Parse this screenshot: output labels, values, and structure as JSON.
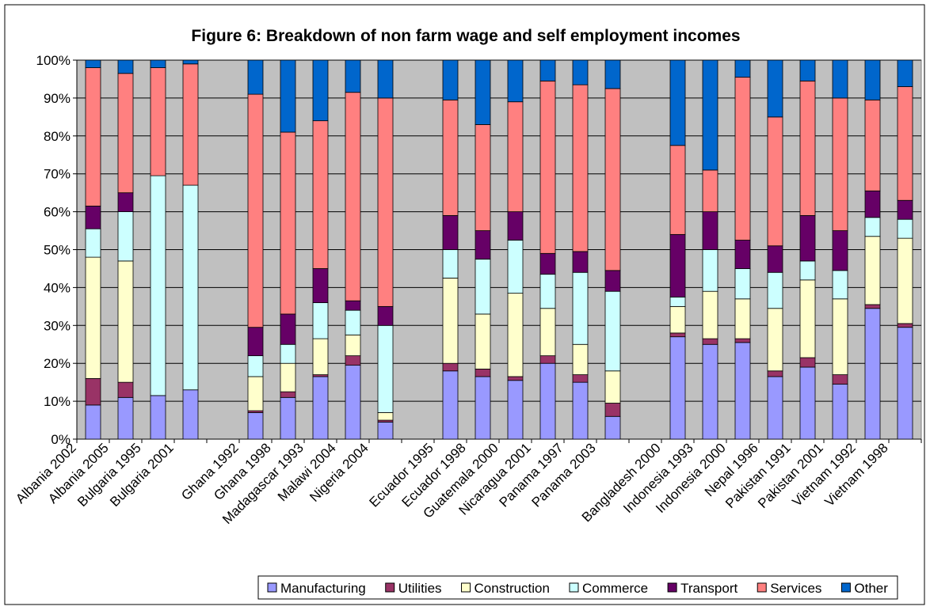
{
  "chart_data": {
    "type": "stacked_bar",
    "title": "Figure 6: Breakdown of non farm wage and self employment incomes",
    "categories": [
      "Albania 2002",
      "Albania 2005",
      "Bulgaria 1995",
      "Bulgaria 2001",
      null,
      "Ghana 1992",
      "Ghana 1998",
      "Madagascar 1993",
      "Malawi 2004",
      "Nigeria 2004",
      null,
      "Ecuador 1995",
      "Ecuador 1998",
      "Guatemala 2000",
      "Nicaragua 2001",
      "Panama 1997",
      "Panama 2003",
      null,
      "Bangladesh 2000",
      "Indonesia 1993",
      "Indonesia 2000",
      "Nepal 1996",
      "Pakistan 1991",
      "Pakistan 2001",
      "Vietnam 1992",
      "Vietnam 1998"
    ],
    "series": [
      {
        "name": "Manufacturing",
        "color": "#9999ff",
        "values": [
          9,
          11,
          11.5,
          13,
          null,
          7,
          11,
          16.5,
          19.5,
          4.5,
          null,
          18,
          16.5,
          15.5,
          20,
          15,
          6,
          null,
          27,
          25,
          25.5,
          16.5,
          19,
          14.5,
          34.5,
          29.5
        ]
      },
      {
        "name": "Utilities",
        "color": "#993366",
        "values": [
          7,
          4,
          0,
          0,
          null,
          0.5,
          1.5,
          0.5,
          2.5,
          0.5,
          null,
          2,
          2,
          1,
          2,
          2,
          3.5,
          null,
          1,
          1.5,
          1,
          1.5,
          2.5,
          2.5,
          1,
          1
        ]
      },
      {
        "name": "Construction",
        "color": "#ffffcc",
        "values": [
          32,
          32,
          0,
          0,
          null,
          9,
          7.5,
          9.5,
          5.5,
          2,
          null,
          22.5,
          14.5,
          22,
          12.5,
          8,
          8.5,
          null,
          7,
          12.5,
          10.5,
          16.5,
          20.5,
          20,
          18,
          22.5
        ]
      },
      {
        "name": "Commerce",
        "color": "#ccffff",
        "values": [
          7.5,
          13,
          58,
          54,
          null,
          5.5,
          5,
          9.5,
          6.5,
          23,
          null,
          7.5,
          14.5,
          14,
          9,
          19,
          21,
          null,
          2.5,
          11,
          8,
          9.5,
          5,
          7.5,
          5,
          5
        ]
      },
      {
        "name": "Transport",
        "color": "#660066",
        "values": [
          6,
          5,
          0,
          0,
          null,
          7.5,
          8,
          9,
          2.5,
          5,
          null,
          9,
          7.5,
          7.5,
          5.5,
          5.5,
          5.5,
          null,
          16.5,
          10,
          7.5,
          7,
          12,
          10.5,
          7,
          5
        ]
      },
      {
        "name": "Services",
        "color": "#ff8080",
        "values": [
          36.5,
          31.5,
          28.5,
          32,
          null,
          61.5,
          48,
          39,
          55,
          55,
          null,
          30.5,
          28,
          29,
          45.5,
          44,
          48,
          null,
          23.5,
          11,
          43,
          34,
          35.5,
          35,
          24,
          30
        ]
      },
      {
        "name": "Other",
        "color": "#0066cc",
        "values": [
          2,
          3.5,
          2,
          1,
          null,
          9,
          19,
          16,
          8.5,
          10,
          null,
          10.5,
          17,
          11,
          5.5,
          6.5,
          7.5,
          null,
          22.5,
          29,
          4.5,
          15,
          5.5,
          10,
          10.5,
          7
        ]
      }
    ],
    "ylim": [
      0,
      100
    ],
    "yticks": [
      {
        "value": 0,
        "label": "0%"
      },
      {
        "value": 10,
        "label": "10%"
      },
      {
        "value": 20,
        "label": "20%"
      },
      {
        "value": 30,
        "label": "30%"
      },
      {
        "value": 40,
        "label": "40%"
      },
      {
        "value": 50,
        "label": "50%"
      },
      {
        "value": 60,
        "label": "60%"
      },
      {
        "value": 70,
        "label": "70%"
      },
      {
        "value": 80,
        "label": "80%"
      },
      {
        "value": 90,
        "label": "90%"
      },
      {
        "value": 100,
        "label": "100%"
      }
    ],
    "grid": true,
    "background": "#c0c0c0",
    "legend": "bottom"
  }
}
